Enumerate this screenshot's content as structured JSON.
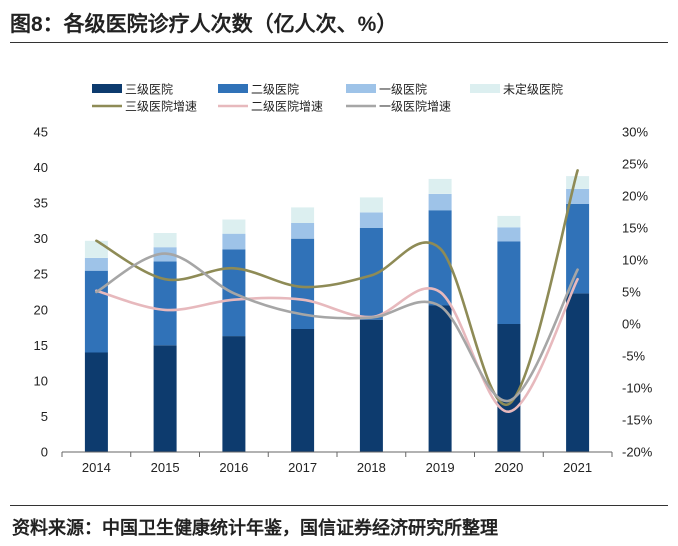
{
  "title": "图8：各级医院诊疗人次数（亿人次、%）",
  "source": "资料来源：中国卫生健康统计年鉴，国信证券经济研究所整理",
  "chart_data": {
    "type": "bar",
    "stacked": true,
    "categories": [
      "2014",
      "2015",
      "2016",
      "2017",
      "2018",
      "2019",
      "2020",
      "2021"
    ],
    "ylim_left": [
      0,
      45
    ],
    "ylim_right": [
      -20,
      30
    ],
    "left_ticks": [
      "0",
      "5",
      "10",
      "15",
      "20",
      "25",
      "30",
      "35",
      "40",
      "45"
    ],
    "right_ticks": [
      "-20%",
      "-15%",
      "-10%",
      "-5%",
      "0%",
      "5%",
      "10%",
      "15%",
      "20%",
      "25%",
      "30%"
    ],
    "series": [
      {
        "name": "三级医院",
        "kind": "bar",
        "axis": "left",
        "color": "#0d3b6e",
        "values": [
          14.0,
          15.0,
          16.3,
          17.3,
          18.6,
          20.6,
          18.0,
          22.3
        ]
      },
      {
        "name": "二级医院",
        "kind": "bar",
        "axis": "left",
        "color": "#3072b8",
        "values": [
          11.5,
          11.8,
          12.2,
          12.7,
          12.9,
          13.4,
          11.6,
          12.6
        ]
      },
      {
        "name": "一级医院",
        "kind": "bar",
        "axis": "left",
        "color": "#9ec3e8",
        "values": [
          1.8,
          2.0,
          2.2,
          2.2,
          2.2,
          2.3,
          2.0,
          2.1
        ]
      },
      {
        "name": "未定级医院",
        "kind": "bar",
        "axis": "left",
        "color": "#dceff0",
        "values": [
          2.4,
          2.0,
          2.0,
          2.2,
          2.1,
          2.1,
          1.6,
          1.8
        ]
      },
      {
        "name": "三级医院增速",
        "kind": "line",
        "axis": "right",
        "color": "#8e8b56",
        "values": [
          13.0,
          7.0,
          8.7,
          5.8,
          7.6,
          11.8,
          -12.5,
          24.0
        ]
      },
      {
        "name": "二级医院增速",
        "kind": "line",
        "axis": "right",
        "color": "#e7b9bd",
        "values": [
          5.2,
          2.2,
          3.8,
          3.8,
          1.1,
          5.0,
          -13.7,
          7.0
        ]
      },
      {
        "name": "一级医院增速",
        "kind": "line",
        "axis": "right",
        "color": "#a6a6a6",
        "values": [
          5.0,
          11.0,
          4.8,
          1.5,
          1.0,
          2.8,
          -12.0,
          8.5
        ]
      }
    ],
    "grid": false,
    "legend_position": "top"
  }
}
